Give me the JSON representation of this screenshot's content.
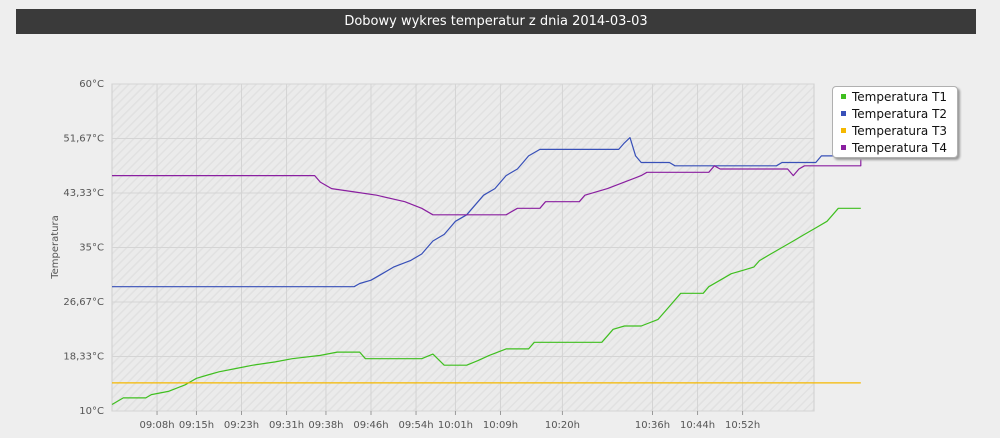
{
  "header": {
    "title": "Dobowy wykres temperatur  z dnia 2014-03-03"
  },
  "chart_data": {
    "type": "line",
    "title": "Dobowy wykres temperatur  z dnia 2014-03-03",
    "xlabel": "",
    "ylabel": "Temperatura",
    "ylim": [
      10,
      60
    ],
    "yticks": [
      "10°C",
      "18,33°C",
      "26,67°C",
      "35°C",
      "43,33°C",
      "51,67°C",
      "60°C"
    ],
    "xticks": [
      "09:08h",
      "09:15h",
      "09:23h",
      "09:31h",
      "09:38h",
      "09:46h",
      "09:54h",
      "10:01h",
      "10:09h",
      "10:20h",
      "10:36h",
      "10:44h",
      "10:52h"
    ],
    "xlim": [
      "09:00h",
      "10:59h"
    ],
    "grid": true,
    "legend_position": "right",
    "series": [
      {
        "name": "Temperatura T1",
        "color": "#3fbf1f",
        "points": [
          [
            "09:00",
            11
          ],
          [
            "09:02",
            12
          ],
          [
            "09:06",
            12
          ],
          [
            "09:07",
            12.5
          ],
          [
            "09:10",
            13
          ],
          [
            "09:13",
            14
          ],
          [
            "09:15",
            15
          ],
          [
            "09:17",
            15.5
          ],
          [
            "09:19",
            16
          ],
          [
            "09:22",
            16.5
          ],
          [
            "09:25",
            17
          ],
          [
            "09:29",
            17.5
          ],
          [
            "09:32",
            18
          ],
          [
            "09:37",
            18.5
          ],
          [
            "09:40",
            19
          ],
          [
            "09:44",
            19
          ],
          [
            "09:45",
            18
          ],
          [
            "09:55",
            18
          ],
          [
            "09:57",
            18.7
          ],
          [
            "09:59",
            17
          ],
          [
            "10:03",
            17
          ],
          [
            "10:05",
            17.7
          ],
          [
            "10:07",
            18.5
          ],
          [
            "10:10",
            19.5
          ],
          [
            "10:14",
            19.5
          ],
          [
            "10:15",
            20.5
          ],
          [
            "10:27",
            20.5
          ],
          [
            "10:28",
            21.5
          ],
          [
            "10:29",
            22.5
          ],
          [
            "10:31",
            23
          ],
          [
            "10:34",
            23
          ],
          [
            "10:37",
            24
          ],
          [
            "10:39",
            26
          ],
          [
            "10:41",
            28
          ],
          [
            "10:45",
            28
          ],
          [
            "10:46",
            29
          ],
          [
            "10:48",
            30
          ],
          [
            "10:50",
            31
          ],
          [
            "10:52",
            31.5
          ],
          [
            "10:54",
            32
          ],
          [
            "10:55",
            33
          ],
          [
            "10:57",
            34
          ],
          [
            "10:59",
            35
          ],
          [
            "11:01",
            36
          ],
          [
            "11:03",
            37
          ],
          [
            "11:05",
            38
          ],
          [
            "11:07",
            39
          ],
          [
            "11:08",
            40
          ],
          [
            "11:09",
            41
          ],
          [
            "11:13",
            41
          ]
        ]
      },
      {
        "name": "Temperatura T2",
        "color": "#3850b8",
        "points": [
          [
            "09:00",
            29
          ],
          [
            "09:43",
            29
          ],
          [
            "09:44",
            29.5
          ],
          [
            "09:46",
            30
          ],
          [
            "09:48",
            31
          ],
          [
            "09:50",
            32
          ],
          [
            "09:53",
            33
          ],
          [
            "09:55",
            34
          ],
          [
            "09:56",
            35
          ],
          [
            "09:57",
            36
          ],
          [
            "09:59",
            37
          ],
          [
            "10:00",
            38
          ],
          [
            "10:01",
            39
          ],
          [
            "10:03",
            40
          ],
          [
            "10:04",
            41
          ],
          [
            "10:05",
            42
          ],
          [
            "10:06",
            43
          ],
          [
            "10:08",
            44
          ],
          [
            "10:09",
            45
          ],
          [
            "10:10",
            46
          ],
          [
            "10:12",
            47
          ],
          [
            "10:13",
            48
          ],
          [
            "10:14",
            49
          ],
          [
            "10:16",
            50
          ],
          [
            "10:30",
            50
          ],
          [
            "10:31",
            51
          ],
          [
            "10:32",
            51.8
          ],
          [
            "10:33",
            49
          ],
          [
            "10:34",
            48
          ],
          [
            "10:39",
            48
          ],
          [
            "10:40",
            47.5
          ],
          [
            "10:58",
            47.5
          ],
          [
            "10:59",
            48
          ],
          [
            "11:05",
            48
          ],
          [
            "11:06",
            49
          ],
          [
            "11:10",
            49
          ],
          [
            "11:11",
            50
          ],
          [
            "11:13",
            50
          ],
          [
            "11:13",
            51
          ]
        ]
      },
      {
        "name": "Temperatura T3",
        "color": "#f5b800",
        "points": [
          [
            "09:00",
            14.3
          ],
          [
            "11:13",
            14.3
          ]
        ]
      },
      {
        "name": "Temperatura T4",
        "color": "#8a1fa0",
        "points": [
          [
            "09:00",
            46
          ],
          [
            "09:36",
            46
          ],
          [
            "09:37",
            45
          ],
          [
            "09:39",
            44
          ],
          [
            "09:43",
            43.5
          ],
          [
            "09:47",
            43
          ],
          [
            "09:52",
            42
          ],
          [
            "09:55",
            41
          ],
          [
            "09:57",
            40
          ],
          [
            "10:10",
            40
          ],
          [
            "10:12",
            41
          ],
          [
            "10:16",
            41
          ],
          [
            "10:17",
            42
          ],
          [
            "10:23",
            42
          ],
          [
            "10:24",
            43
          ],
          [
            "10:28",
            44
          ],
          [
            "10:31",
            45
          ],
          [
            "10:34",
            46
          ],
          [
            "10:35",
            46.5
          ],
          [
            "10:46",
            46.5
          ],
          [
            "10:47",
            47.5
          ],
          [
            "10:48",
            47
          ],
          [
            "11:00",
            47
          ],
          [
            "11:01",
            46
          ],
          [
            "11:02",
            47
          ],
          [
            "11:03",
            47.5
          ],
          [
            "11:13",
            47.5
          ],
          [
            "11:13",
            48.5
          ]
        ]
      }
    ]
  }
}
